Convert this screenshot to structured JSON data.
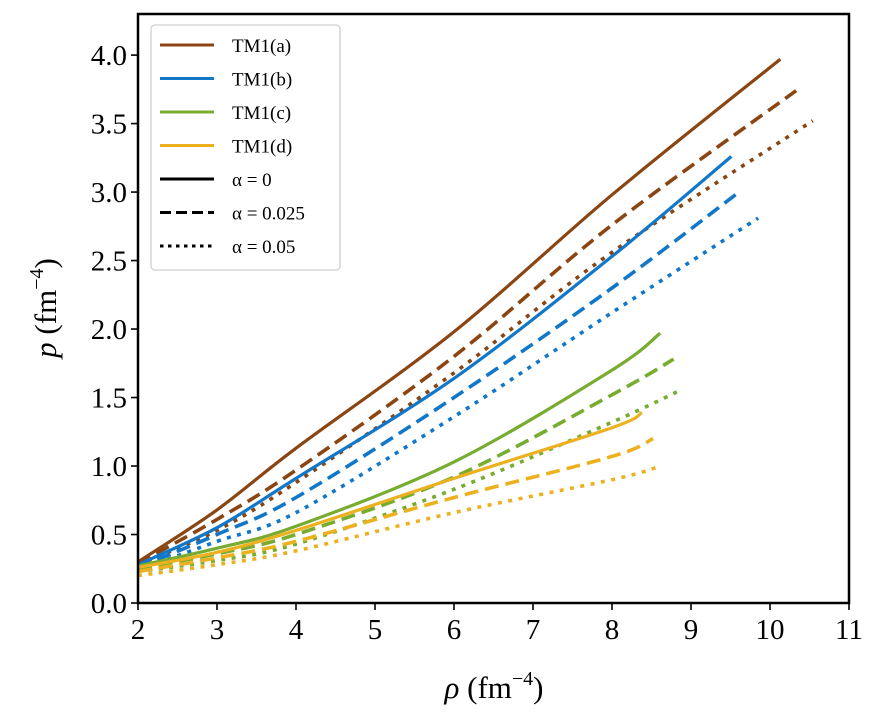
{
  "chart_data": {
    "type": "line",
    "title": "",
    "xlabel": {
      "symbol": "ρ",
      "unit": "(fm",
      "exp": "−4",
      "close": ")"
    },
    "ylabel": {
      "symbol": "p",
      "unit": "(fm",
      "exp": "−4",
      "close": ")"
    },
    "xlim": [
      2,
      11
    ],
    "ylim": [
      0,
      4.3
    ],
    "xticks": [
      2,
      3,
      4,
      5,
      6,
      7,
      8,
      9,
      10,
      11
    ],
    "xtick_labels": [
      "2",
      "3",
      "4",
      "5",
      "6",
      "7",
      "8",
      "9",
      "10",
      "11"
    ],
    "yticks": [
      0,
      0.5,
      1.0,
      1.5,
      2.0,
      2.5,
      3.0,
      3.5,
      4.0
    ],
    "ytick_labels": [
      "0.0",
      "0.5",
      "1.0",
      "1.5",
      "2.0",
      "2.5",
      "3.0",
      "3.5",
      "4.0"
    ],
    "grid": false,
    "legend_position": "top-left",
    "legend": [
      {
        "label": "TM1(a)",
        "color": "#8B4513",
        "style": "solid"
      },
      {
        "label": "TM1(b)",
        "color": "#1177C8",
        "style": "solid"
      },
      {
        "label": "TM1(c)",
        "color": "#77AC30",
        "style": "solid"
      },
      {
        "label": "TM1(d)",
        "color": "#EDB120",
        "style": "solid"
      },
      {
        "label": "α = 0",
        "color": "#000000",
        "style": "solid"
      },
      {
        "label": "α = 0.025",
        "color": "#000000",
        "style": "dashed"
      },
      {
        "label": "α = 0.05",
        "color": "#000000",
        "style": "dotted"
      }
    ],
    "series": [
      {
        "name": "TM1(a) α = 0",
        "model": "TM1(a)",
        "alpha": 0,
        "color": "#8B4513",
        "style": "solid",
        "x": [
          2,
          3,
          4,
          6,
          8,
          10.13
        ],
        "y": [
          0.3,
          0.68,
          1.13,
          1.98,
          2.98,
          3.97
        ]
      },
      {
        "name": "TM1(a) α = 0.025",
        "model": "TM1(a)",
        "alpha": 0.025,
        "color": "#8B4513",
        "style": "dashed",
        "x": [
          2,
          3,
          4,
          6,
          8,
          10.33
        ],
        "y": [
          0.29,
          0.61,
          0.97,
          1.8,
          2.76,
          3.74
        ]
      },
      {
        "name": "TM1(a) α = 0.05",
        "model": "TM1(a)",
        "alpha": 0.05,
        "color": "#8B4513",
        "style": "dotted",
        "x": [
          2,
          3,
          4,
          6,
          8,
          10.54
        ],
        "y": [
          0.28,
          0.53,
          0.88,
          1.68,
          2.56,
          3.52
        ]
      },
      {
        "name": "TM1(b) α = 0",
        "model": "TM1(b)",
        "alpha": 0,
        "color": "#1177C8",
        "style": "solid",
        "x": [
          2,
          3,
          4,
          6,
          8,
          9.51
        ],
        "y": [
          0.28,
          0.55,
          0.91,
          1.64,
          2.53,
          3.26
        ]
      },
      {
        "name": "TM1(b) α = 0.025",
        "model": "TM1(b)",
        "alpha": 0.025,
        "color": "#1177C8",
        "style": "dashed",
        "x": [
          2,
          3,
          4,
          6,
          8,
          9.63
        ],
        "y": [
          0.26,
          0.5,
          0.77,
          1.5,
          2.3,
          3.01
        ]
      },
      {
        "name": "TM1(b) α = 0.05",
        "model": "TM1(b)",
        "alpha": 0.05,
        "color": "#1177C8",
        "style": "dotted",
        "x": [
          2,
          3,
          4,
          6,
          8,
          9.85
        ],
        "y": [
          0.24,
          0.45,
          0.66,
          1.36,
          2.12,
          2.81
        ]
      },
      {
        "name": "TM1(c) α = 0",
        "model": "TM1(c)",
        "alpha": 0,
        "color": "#77AC30",
        "style": "solid",
        "x": [
          2,
          3,
          4,
          6,
          8,
          8.61
        ],
        "y": [
          0.27,
          0.4,
          0.56,
          1.03,
          1.7,
          1.97
        ]
      },
      {
        "name": "TM1(c) α = 0.025",
        "model": "TM1(c)",
        "alpha": 0.025,
        "color": "#77AC30",
        "style": "dashed",
        "x": [
          2,
          3,
          4,
          6,
          8,
          8.78
        ],
        "y": [
          0.25,
          0.36,
          0.5,
          0.92,
          1.52,
          1.78
        ]
      },
      {
        "name": "TM1(c) α = 0.05",
        "model": "TM1(c)",
        "alpha": 0.05,
        "color": "#77AC30",
        "style": "dotted",
        "x": [
          2,
          3,
          4,
          6,
          8,
          8.89
        ],
        "y": [
          0.23,
          0.31,
          0.43,
          0.83,
          1.32,
          1.56
        ]
      },
      {
        "name": "TM1(d) α = 0",
        "model": "TM1(d)",
        "alpha": 0,
        "color": "#EDB120",
        "style": "solid",
        "x": [
          2,
          3,
          4,
          6,
          8,
          8.38
        ],
        "y": [
          0.26,
          0.37,
          0.53,
          0.91,
          1.28,
          1.39
        ]
      },
      {
        "name": "TM1(d) α = 0.025",
        "model": "TM1(d)",
        "alpha": 0.025,
        "color": "#EDB120",
        "style": "dashed",
        "x": [
          2,
          3,
          4,
          6,
          8,
          8.52
        ],
        "y": [
          0.23,
          0.33,
          0.45,
          0.77,
          1.07,
          1.2
        ]
      },
      {
        "name": "TM1(d) α = 0.05",
        "model": "TM1(d)",
        "alpha": 0.05,
        "color": "#EDB120",
        "style": "dotted",
        "x": [
          2,
          3,
          4,
          6,
          8,
          8.62
        ],
        "y": [
          0.2,
          0.28,
          0.38,
          0.66,
          0.9,
          1.0
        ]
      }
    ]
  }
}
